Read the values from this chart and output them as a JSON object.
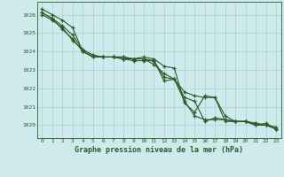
{
  "title": "Graphe pression niveau de la mer (hPa)",
  "bg_color": "#ceeaec",
  "grid_color": "#aacfcf",
  "line_color": "#2d5a27",
  "x_min": 0,
  "x_max": 23,
  "y_min": 1019.3,
  "y_max": 1026.7,
  "yticks": [
    1020,
    1021,
    1022,
    1023,
    1024,
    1025,
    1026
  ],
  "xticks": [
    0,
    1,
    2,
    3,
    4,
    5,
    6,
    7,
    8,
    9,
    10,
    11,
    12,
    13,
    14,
    15,
    16,
    17,
    18,
    19,
    20,
    21,
    22,
    23
  ],
  "series": [
    [
      1026.3,
      1026.0,
      1025.7,
      1025.3,
      1024.0,
      1023.7,
      1023.7,
      1023.7,
      1023.6,
      1023.6,
      1023.7,
      1023.6,
      1023.2,
      1023.1,
      1021.2,
      1020.7,
      1021.6,
      1021.5,
      1020.5,
      1020.2,
      1020.2,
      1020.1,
      1020.0,
      1019.8
    ],
    [
      1026.1,
      1025.8,
      1025.2,
      1024.7,
      1024.0,
      1023.7,
      1023.7,
      1023.7,
      1023.6,
      1023.5,
      1023.5,
      1023.5,
      1022.4,
      1022.5,
      1021.8,
      1021.6,
      1021.5,
      1021.5,
      1020.2,
      1020.2,
      1020.2,
      1020.0,
      1020.1,
      1019.8
    ],
    [
      1026.1,
      1025.8,
      1025.4,
      1024.9,
      1024.1,
      1023.8,
      1023.7,
      1023.7,
      1023.7,
      1023.6,
      1023.6,
      1023.5,
      1022.6,
      1022.5,
      1021.3,
      1020.5,
      1020.3,
      1020.3,
      1020.3,
      1020.2,
      1020.2,
      1020.1,
      1020.0,
      1019.8
    ],
    [
      1026.0,
      1025.7,
      1025.3,
      1024.6,
      1024.1,
      1023.8,
      1023.7,
      1023.7,
      1023.7,
      1023.6,
      1023.6,
      1023.3,
      1022.8,
      1022.5,
      1021.5,
      1021.3,
      1020.2,
      1020.4,
      1020.3,
      1020.2,
      1020.2,
      1020.0,
      1020.0,
      1019.9
    ]
  ]
}
